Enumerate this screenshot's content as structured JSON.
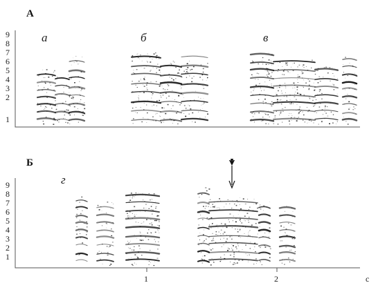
{
  "panels": [
    {
      "letter": "А",
      "y_ticks": [
        "9",
        "8",
        "7",
        "6",
        "5",
        "4",
        "3",
        "2",
        "1"
      ],
      "syllables": [
        {
          "label": "а"
        },
        {
          "label": "б"
        },
        {
          "label": "в"
        }
      ]
    },
    {
      "letter": "Б",
      "y_ticks": [
        "9",
        "8",
        "7",
        "6",
        "5",
        "4",
        "3",
        "2",
        "1"
      ],
      "syllables": [
        {
          "label": "г"
        }
      ],
      "x_ticks": [
        "1",
        "2"
      ],
      "x_unit": "с",
      "arrow": "arrow-marker-icon"
    }
  ],
  "colors": {
    "ink": "#111111",
    "axis": "#555555",
    "background": "#ffffff"
  }
}
